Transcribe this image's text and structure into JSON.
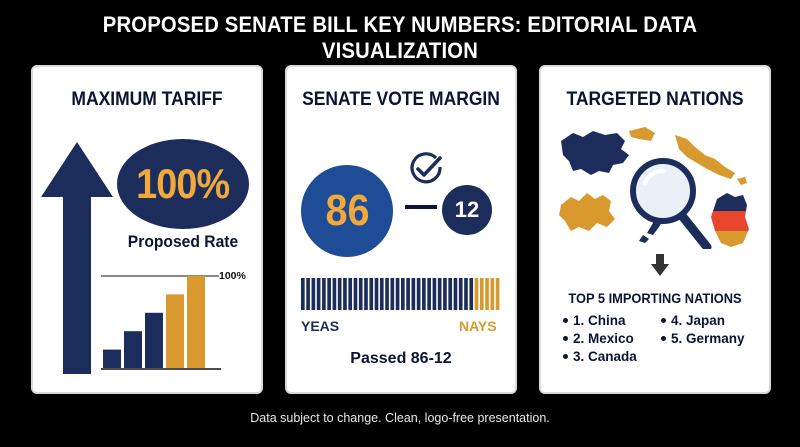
{
  "header": {
    "title": "PROPOSED SENATE BILL KEY NUMBERS: EDITORIAL DATA VISUALIZATION"
  },
  "colors": {
    "navy": "#1c2d5c",
    "blue": "#1f4c96",
    "gold": "#f0a93a",
    "background": "#000000"
  },
  "tariff_panel": {
    "title": "MAXIMUM TARIFF",
    "rate": "100%",
    "rate_label": "Proposed Rate",
    "chart_label": "100%",
    "icons": [
      "up-arrow-icon"
    ],
    "bars": [
      {
        "level": 0.2,
        "color": "navy"
      },
      {
        "level": 0.4,
        "color": "navy"
      },
      {
        "level": 0.6,
        "color": "navy"
      },
      {
        "level": 0.8,
        "color": "gold"
      },
      {
        "level": 1.0,
        "color": "gold"
      }
    ]
  },
  "vote_panel": {
    "title": "SENATE VOTE MARGIN",
    "yeas_count": "86",
    "nays_count": "12",
    "yeas_label": "YEAS",
    "nays_label": "NAYS",
    "result": "Passed 86-12",
    "icons": [
      "checkmark-icon"
    ]
  },
  "nations_panel": {
    "title": "TARGETED NATIONS",
    "list_title": "TOP 5 IMPORTING NATIONS",
    "icons": [
      "world-map-icon",
      "magnifying-glass-icon",
      "down-arrow-icon"
    ],
    "nations": [
      "1. China",
      "4. Japan",
      "2. Mexico",
      "5. Germany",
      "3. Canada"
    ]
  },
  "footer": {
    "text": "Data subject to change. Clean, logo-free presentation."
  }
}
